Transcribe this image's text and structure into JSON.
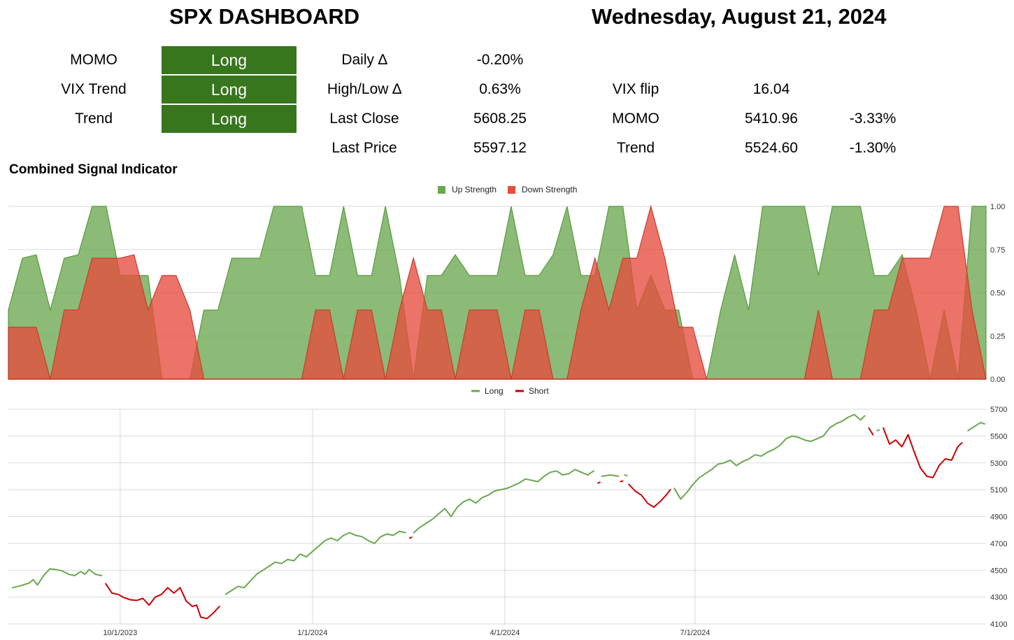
{
  "header": {
    "title": "SPX DASHBOARD",
    "date": "Wednesday, August 21, 2024"
  },
  "signals": [
    {
      "label": "MOMO",
      "value": "Long"
    },
    {
      "label": "VIX Trend",
      "value": "Long"
    },
    {
      "label": "Trend",
      "value": "Long"
    }
  ],
  "metrics": [
    {
      "label": "Daily ∆",
      "value": "-0.20%"
    },
    {
      "label": "High/Low ∆",
      "value": "0.63%"
    },
    {
      "label": "Last Close",
      "value": "5608.25"
    },
    {
      "label": "Last Price",
      "value": "5597.12"
    }
  ],
  "levels": [
    {
      "label": "VIX flip",
      "value": "16.04",
      "pct": ""
    },
    {
      "label": "MOMO",
      "value": "5410.96",
      "pct": "-3.33%"
    },
    {
      "label": "Trend",
      "value": "5524.60",
      "pct": "-1.30%"
    }
  ],
  "colors": {
    "signal_long": "#38761d",
    "up": "#6aa84f",
    "down": "#e74c3c",
    "short": "#cc0000"
  },
  "combined_section_title": "Combined Signal Indicator",
  "chart_data": [
    {
      "type": "area",
      "title": "",
      "legend_position": "top-center",
      "series": [
        {
          "name": "Up Strength",
          "color": "#6aa84f",
          "values": [
            0.4,
            0.7,
            0.72,
            0.4,
            0.7,
            0.72,
            1.0,
            1.0,
            0.6,
            0.6,
            0.6,
            0.0,
            0.0,
            0.0,
            0.4,
            0.4,
            0.7,
            0.7,
            0.7,
            1.0,
            1.0,
            1.0,
            0.6,
            0.6,
            1.0,
            0.6,
            0.6,
            1.0,
            0.6,
            0.0,
            0.6,
            0.6,
            0.72,
            0.6,
            0.6,
            0.6,
            1.0,
            0.6,
            0.6,
            0.72,
            1.0,
            0.6,
            0.6,
            1.0,
            1.0,
            0.4,
            0.6,
            0.4,
            0.4,
            0.0,
            0.0,
            0.4,
            0.72,
            0.4,
            1.0,
            1.0,
            1.0,
            1.0,
            0.6,
            1.0,
            1.0,
            1.0,
            0.6,
            0.6,
            0.72,
            0.4,
            0.0,
            0.4,
            0.0,
            1.0,
            1.0
          ]
        },
        {
          "name": "Down Strength",
          "color": "#e74c3c",
          "values": [
            0.3,
            0.3,
            0.3,
            0.0,
            0.4,
            0.4,
            0.7,
            0.7,
            0.7,
            0.72,
            0.4,
            0.6,
            0.6,
            0.4,
            0.0,
            0.0,
            0.0,
            0.0,
            0.0,
            0.0,
            0.0,
            0.0,
            0.4,
            0.4,
            0.0,
            0.4,
            0.4,
            0.0,
            0.4,
            0.7,
            0.4,
            0.4,
            0.0,
            0.4,
            0.4,
            0.4,
            0.0,
            0.4,
            0.4,
            0.0,
            0.0,
            0.4,
            0.7,
            0.4,
            0.7,
            0.7,
            1.0,
            0.7,
            0.3,
            0.3,
            0.0,
            0.0,
            0.0,
            0.0,
            0.0,
            0.0,
            0.0,
            0.0,
            0.4,
            0.0,
            0.0,
            0.0,
            0.4,
            0.4,
            0.7,
            0.7,
            0.7,
            1.0,
            1.0,
            0.4,
            0.0
          ]
        }
      ],
      "ylim": [
        0,
        1
      ],
      "yticks": [
        "1.00",
        "0.75",
        "0.50",
        "0.25",
        "0.00"
      ],
      "grid": true
    },
    {
      "type": "line",
      "title": "",
      "legend_position": "top-center",
      "series_names": [
        "Long",
        "Short"
      ],
      "ylim": [
        4100,
        5700
      ],
      "yticks": [
        "5700",
        "5500",
        "5300",
        "5100",
        "4900",
        "4700",
        "4500",
        "4300",
        "4100"
      ],
      "xticks": [
        "10/1/2023",
        "1/1/2024",
        "4/1/2024",
        "7/1/2024"
      ],
      "grid": true,
      "segments": [
        {
          "signal": "Long",
          "points": [
            [
              0,
              4370
            ],
            [
              4,
              4385
            ],
            [
              8,
              4405
            ],
            [
              10,
              4430
            ],
            [
              12,
              4390
            ],
            [
              15,
              4460
            ],
            [
              18,
              4510
            ],
            [
              21,
              4505
            ],
            [
              24,
              4495
            ],
            [
              27,
              4470
            ],
            [
              30,
              4460
            ],
            [
              33,
              4490
            ],
            [
              35,
              4470
            ],
            [
              37,
              4505
            ],
            [
              40,
              4470
            ],
            [
              43,
              4460
            ]
          ]
        },
        {
          "signal": "Short",
          "points": [
            [
              45,
              4400
            ],
            [
              48,
              4330
            ],
            [
              51,
              4320
            ],
            [
              54,
              4295
            ],
            [
              57,
              4280
            ],
            [
              60,
              4275
            ],
            [
              63,
              4290
            ],
            [
              66,
              4240
            ],
            [
              69,
              4300
            ],
            [
              72,
              4320
            ],
            [
              75,
              4370
            ],
            [
              78,
              4330
            ],
            [
              81,
              4370
            ],
            [
              84,
              4270
            ],
            [
              87,
              4230
            ],
            [
              89,
              4240
            ],
            [
              91,
              4150
            ],
            [
              94,
              4140
            ],
            [
              97,
              4180
            ],
            [
              100,
              4230
            ]
          ]
        },
        {
          "signal": "Long",
          "points": [
            [
              103,
              4320
            ],
            [
              106,
              4350
            ],
            [
              109,
              4380
            ],
            [
              112,
              4370
            ],
            [
              115,
              4420
            ],
            [
              118,
              4470
            ],
            [
              121,
              4500
            ],
            [
              124,
              4530
            ],
            [
              127,
              4560
            ],
            [
              130,
              4550
            ],
            [
              133,
              4580
            ],
            [
              136,
              4570
            ],
            [
              139,
              4620
            ],
            [
              142,
              4600
            ],
            [
              145,
              4640
            ],
            [
              148,
              4680
            ],
            [
              151,
              4720
            ],
            [
              154,
              4740
            ],
            [
              157,
              4720
            ],
            [
              160,
              4760
            ],
            [
              163,
              4780
            ],
            [
              166,
              4760
            ],
            [
              169,
              4750
            ],
            [
              172,
              4720
            ],
            [
              175,
              4700
            ],
            [
              178,
              4750
            ],
            [
              181,
              4770
            ],
            [
              184,
              4760
            ],
            [
              187,
              4790
            ],
            [
              190,
              4780
            ]
          ]
        },
        {
          "signal": "Short",
          "points": [
            [
              192,
              4740
            ],
            [
              193,
              4745
            ]
          ]
        },
        {
          "signal": "Long",
          "points": [
            [
              194,
              4780
            ],
            [
              197,
              4820
            ],
            [
              200,
              4850
            ],
            [
              203,
              4880
            ],
            [
              206,
              4920
            ],
            [
              209,
              4960
            ],
            [
              212,
              4900
            ],
            [
              215,
              4970
            ],
            [
              218,
              5010
            ],
            [
              221,
              5030
            ],
            [
              224,
              5000
            ],
            [
              227,
              5040
            ],
            [
              230,
              5060
            ],
            [
              233,
              5090
            ],
            [
              236,
              5100
            ],
            [
              239,
              5110
            ],
            [
              242,
              5130
            ],
            [
              245,
              5150
            ],
            [
              248,
              5180
            ],
            [
              251,
              5170
            ],
            [
              254,
              5160
            ],
            [
              257,
              5200
            ],
            [
              260,
              5230
            ],
            [
              263,
              5240
            ],
            [
              266,
              5210
            ],
            [
              269,
              5220
            ],
            [
              272,
              5250
            ],
            [
              275,
              5230
            ],
            [
              278,
              5210
            ],
            [
              281,
              5240
            ]
          ]
        },
        {
          "signal": "Short",
          "points": [
            [
              283,
              5150
            ],
            [
              284,
              5155
            ]
          ]
        },
        {
          "signal": "Long",
          "points": [
            [
              285,
              5200
            ],
            [
              289,
              5210
            ],
            [
              293,
              5200
            ]
          ]
        },
        {
          "signal": "Short",
          "points": [
            [
              294,
              5160
            ],
            [
              295,
              5165
            ]
          ]
        },
        {
          "signal": "Long",
          "points": [
            [
              296,
              5210
            ],
            [
              297,
              5205
            ]
          ]
        },
        {
          "signal": "Short",
          "points": [
            [
              298,
              5140
            ],
            [
              301,
              5090
            ],
            [
              304,
              5060
            ],
            [
              307,
              5000
            ],
            [
              310,
              4970
            ],
            [
              313,
              5010
            ],
            [
              316,
              5060
            ],
            [
              318,
              5100
            ]
          ]
        },
        {
          "signal": "Long",
          "points": [
            [
              320,
              5110
            ],
            [
              323,
              5030
            ],
            [
              326,
              5080
            ],
            [
              329,
              5140
            ],
            [
              332,
              5190
            ],
            [
              335,
              5220
            ],
            [
              338,
              5250
            ],
            [
              341,
              5290
            ],
            [
              344,
              5300
            ],
            [
              347,
              5320
            ],
            [
              350,
              5280
            ],
            [
              353,
              5310
            ],
            [
              356,
              5330
            ],
            [
              359,
              5360
            ],
            [
              362,
              5350
            ],
            [
              365,
              5380
            ],
            [
              368,
              5400
            ],
            [
              371,
              5430
            ],
            [
              374,
              5480
            ],
            [
              377,
              5500
            ],
            [
              380,
              5490
            ],
            [
              383,
              5470
            ],
            [
              386,
              5460
            ],
            [
              389,
              5480
            ],
            [
              392,
              5500
            ],
            [
              395,
              5560
            ],
            [
              398,
              5590
            ],
            [
              401,
              5610
            ],
            [
              404,
              5640
            ],
            [
              407,
              5660
            ],
            [
              410,
              5620
            ],
            [
              412,
              5650
            ]
          ]
        },
        {
          "signal": "Short",
          "points": [
            [
              414,
              5560
            ],
            [
              416,
              5510
            ]
          ]
        },
        {
          "signal": "Long",
          "points": [
            [
              418,
              5540
            ],
            [
              419,
              5545
            ]
          ]
        },
        {
          "signal": "Short",
          "points": [
            [
              421,
              5560
            ],
            [
              424,
              5440
            ],
            [
              427,
              5470
            ],
            [
              430,
              5420
            ],
            [
              433,
              5510
            ],
            [
              436,
              5380
            ],
            [
              439,
              5260
            ],
            [
              442,
              5200
            ],
            [
              445,
              5190
            ],
            [
              448,
              5280
            ],
            [
              451,
              5330
            ],
            [
              454,
              5320
            ],
            [
              457,
              5420
            ],
            [
              459,
              5450
            ]
          ]
        },
        {
          "signal": "Long",
          "points": [
            [
              462,
              5540
            ],
            [
              465,
              5570
            ],
            [
              468,
              5600
            ],
            [
              470,
              5590
            ]
          ]
        }
      ]
    }
  ]
}
